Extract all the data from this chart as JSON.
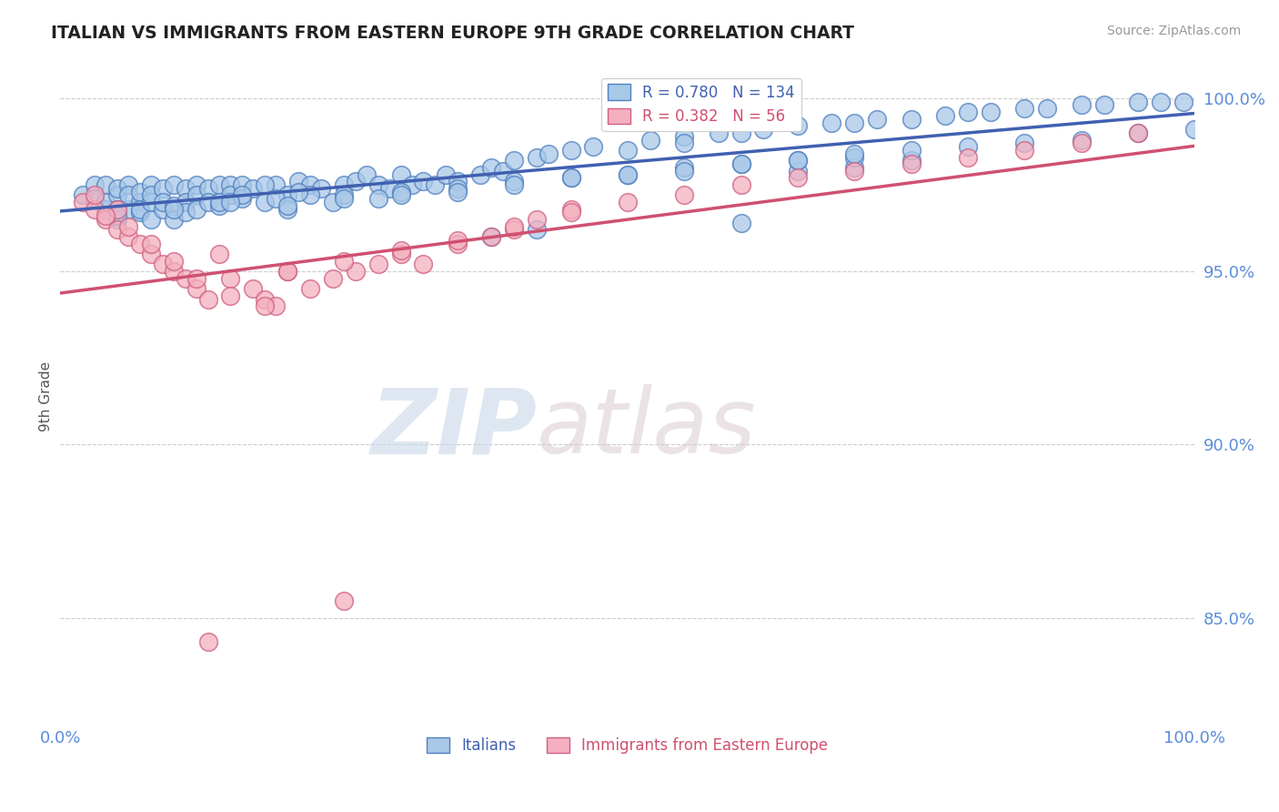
{
  "title": "ITALIAN VS IMMIGRANTS FROM EASTERN EUROPE 9TH GRADE CORRELATION CHART",
  "source": "Source: ZipAtlas.com",
  "ylabel": "9th Grade",
  "xmin": 0.0,
  "xmax": 1.0,
  "ymin": 0.82,
  "ymax": 1.008,
  "yticks": [
    0.85,
    0.9,
    0.95,
    1.0
  ],
  "ytick_labels": [
    "85.0%",
    "90.0%",
    "95.0%",
    "100.0%"
  ],
  "xticks": [
    0.0,
    0.25,
    0.5,
    0.75,
    1.0
  ],
  "xtick_labels": [
    "0.0%",
    "",
    "",
    "",
    "100.0%"
  ],
  "blue_fill": "#a8c8e8",
  "blue_edge": "#5080c0",
  "pink_fill": "#f4b0c0",
  "pink_edge": "#d06080",
  "blue_line": "#4060b0",
  "pink_line": "#d05070",
  "r_blue": 0.78,
  "n_blue": 134,
  "r_pink": 0.382,
  "n_pink": 56,
  "title_color": "#222222",
  "axis_label_color": "#5b8dd9",
  "watermark_zip": "ZIP",
  "watermark_atlas": "atlas",
  "blue_scatter_x": [
    0.02,
    0.03,
    0.03,
    0.04,
    0.04,
    0.04,
    0.05,
    0.05,
    0.05,
    0.05,
    0.06,
    0.06,
    0.06,
    0.07,
    0.07,
    0.07,
    0.07,
    0.08,
    0.08,
    0.08,
    0.08,
    0.09,
    0.09,
    0.09,
    0.1,
    0.1,
    0.1,
    0.11,
    0.11,
    0.11,
    0.12,
    0.12,
    0.12,
    0.13,
    0.13,
    0.14,
    0.14,
    0.15,
    0.15,
    0.16,
    0.16,
    0.17,
    0.18,
    0.19,
    0.2,
    0.2,
    0.21,
    0.22,
    0.23,
    0.24,
    0.25,
    0.26,
    0.27,
    0.28,
    0.29,
    0.3,
    0.31,
    0.32,
    0.33,
    0.34,
    0.35,
    0.37,
    0.38,
    0.39,
    0.4,
    0.42,
    0.43,
    0.45,
    0.47,
    0.5,
    0.52,
    0.55,
    0.58,
    0.6,
    0.62,
    0.65,
    0.68,
    0.7,
    0.72,
    0.75,
    0.78,
    0.8,
    0.82,
    0.85,
    0.87,
    0.9,
    0.92,
    0.95,
    0.97,
    0.99,
    0.55,
    0.6,
    0.65,
    0.7,
    0.75,
    0.38,
    0.42,
    0.18,
    0.22,
    0.28,
    0.14,
    0.16,
    0.19,
    0.21,
    0.25,
    0.3,
    0.35,
    0.4,
    0.45,
    0.5,
    0.55,
    0.6,
    0.65,
    0.7,
    0.75,
    0.8,
    0.85,
    0.9,
    0.95,
    1.0,
    0.05,
    0.1,
    0.15,
    0.2,
    0.25,
    0.3,
    0.35,
    0.4,
    0.45,
    0.5,
    0.55,
    0.6,
    0.65,
    0.7
  ],
  "blue_scatter_y": [
    0.972,
    0.975,
    0.971,
    0.968,
    0.975,
    0.97,
    0.972,
    0.968,
    0.974,
    0.965,
    0.968,
    0.975,
    0.972,
    0.97,
    0.967,
    0.973,
    0.968,
    0.975,
    0.97,
    0.965,
    0.972,
    0.968,
    0.974,
    0.97,
    0.975,
    0.969,
    0.965,
    0.974,
    0.97,
    0.967,
    0.975,
    0.972,
    0.968,
    0.974,
    0.97,
    0.975,
    0.969,
    0.975,
    0.972,
    0.975,
    0.971,
    0.974,
    0.97,
    0.975,
    0.972,
    0.968,
    0.976,
    0.975,
    0.974,
    0.97,
    0.975,
    0.976,
    0.978,
    0.975,
    0.974,
    0.978,
    0.975,
    0.976,
    0.975,
    0.978,
    0.976,
    0.978,
    0.98,
    0.979,
    0.982,
    0.983,
    0.984,
    0.985,
    0.986,
    0.985,
    0.988,
    0.989,
    0.99,
    0.99,
    0.991,
    0.992,
    0.993,
    0.993,
    0.994,
    0.994,
    0.995,
    0.996,
    0.996,
    0.997,
    0.997,
    0.998,
    0.998,
    0.999,
    0.999,
    0.999,
    0.987,
    0.964,
    0.979,
    0.98,
    0.982,
    0.96,
    0.962,
    0.975,
    0.972,
    0.971,
    0.97,
    0.972,
    0.971,
    0.973,
    0.972,
    0.973,
    0.974,
    0.976,
    0.977,
    0.978,
    0.98,
    0.981,
    0.982,
    0.983,
    0.985,
    0.986,
    0.987,
    0.988,
    0.99,
    0.991,
    0.966,
    0.968,
    0.97,
    0.969,
    0.971,
    0.972,
    0.973,
    0.975,
    0.977,
    0.978,
    0.979,
    0.981,
    0.982,
    0.984
  ],
  "pink_scatter_x": [
    0.02,
    0.03,
    0.04,
    0.05,
    0.05,
    0.06,
    0.07,
    0.08,
    0.09,
    0.1,
    0.11,
    0.12,
    0.13,
    0.14,
    0.15,
    0.17,
    0.18,
    0.19,
    0.2,
    0.22,
    0.24,
    0.26,
    0.28,
    0.3,
    0.32,
    0.35,
    0.38,
    0.4,
    0.42,
    0.45,
    0.03,
    0.04,
    0.06,
    0.08,
    0.1,
    0.12,
    0.15,
    0.18,
    0.2,
    0.25,
    0.3,
    0.35,
    0.4,
    0.45,
    0.5,
    0.55,
    0.6,
    0.65,
    0.7,
    0.75,
    0.8,
    0.85,
    0.9,
    0.95,
    0.13,
    0.25
  ],
  "pink_scatter_y": [
    0.97,
    0.968,
    0.965,
    0.968,
    0.962,
    0.96,
    0.958,
    0.955,
    0.952,
    0.95,
    0.948,
    0.945,
    0.942,
    0.955,
    0.948,
    0.945,
    0.942,
    0.94,
    0.95,
    0.945,
    0.948,
    0.95,
    0.952,
    0.955,
    0.952,
    0.958,
    0.96,
    0.962,
    0.965,
    0.968,
    0.972,
    0.966,
    0.963,
    0.958,
    0.953,
    0.948,
    0.943,
    0.94,
    0.95,
    0.953,
    0.956,
    0.959,
    0.963,
    0.967,
    0.97,
    0.972,
    0.975,
    0.977,
    0.979,
    0.981,
    0.983,
    0.985,
    0.987,
    0.99,
    0.843,
    0.855
  ]
}
